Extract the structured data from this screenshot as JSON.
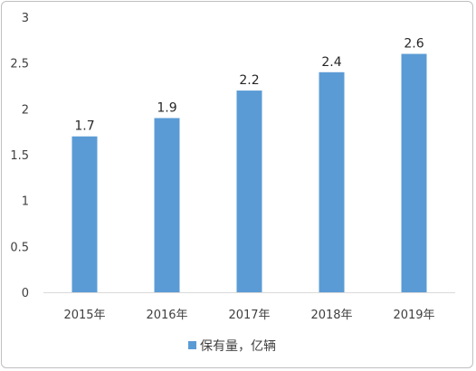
{
  "chart_data": {
    "type": "bar",
    "categories": [
      "2015年",
      "2016年",
      "2017年",
      "2018年",
      "2019年"
    ],
    "series": [
      {
        "name": "保有量，亿辆",
        "values": [
          1.7,
          1.9,
          2.2,
          2.4,
          2.6
        ],
        "color": "#5b9bd5"
      }
    ],
    "data_labels": [
      "1.7",
      "1.9",
      "2.2",
      "2.4",
      "2.6"
    ],
    "yticks": [
      "0",
      "0.5",
      "1",
      "1.5",
      "2",
      "2.5",
      "3"
    ],
    "ylim": [
      0,
      3
    ],
    "grid": false,
    "legend_position": "bottom"
  }
}
